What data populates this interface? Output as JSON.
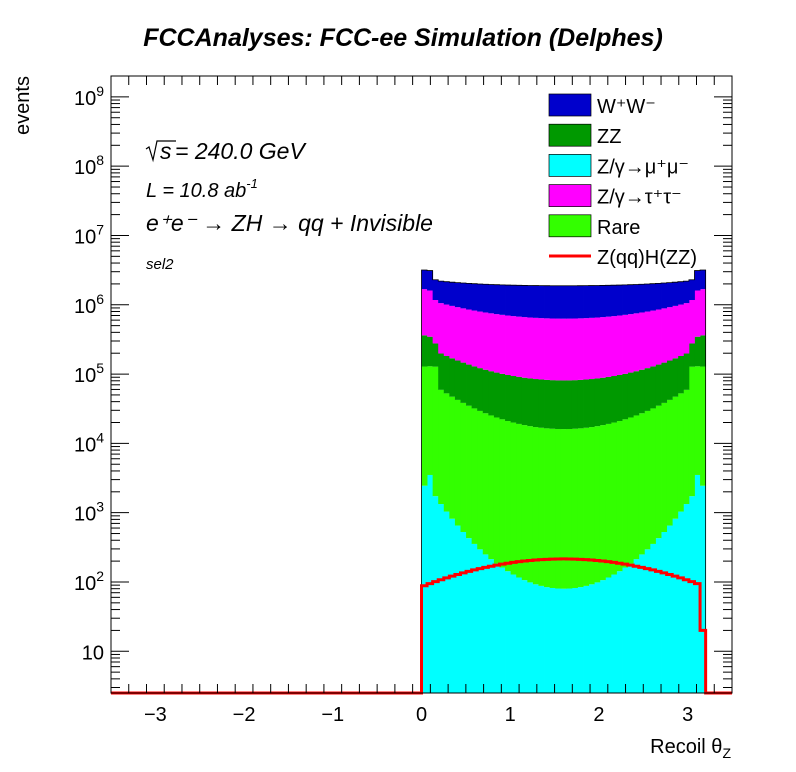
{
  "chart_data": {
    "type": "stacked-histogram",
    "title": "FCCAnalyses: FCC-ee Simulation (Delphes)",
    "xlabel": "Recoil θ",
    "xlabel_sub": "Z",
    "ylabel": "events",
    "xlim": [
      -3.5,
      3.5
    ],
    "ylim": [
      2.5,
      2000000000
    ],
    "yscale": "log",
    "x_ticks": [
      -3,
      -2,
      -1,
      0,
      1,
      2,
      3
    ],
    "x_tick_labels": [
      "−3",
      "−2",
      "−1",
      "0",
      "1",
      "2",
      "3"
    ],
    "y_ticks": [
      {
        "value": 10,
        "base": "10",
        "exp": ""
      },
      {
        "value": 100,
        "base": "10",
        "exp": "2"
      },
      {
        "value": 1000,
        "base": "10",
        "exp": "3"
      },
      {
        "value": 10000,
        "base": "10",
        "exp": "4"
      },
      {
        "value": 100000,
        "base": "10",
        "exp": "5"
      },
      {
        "value": 1000000,
        "base": "10",
        "exp": "6"
      },
      {
        "value": 10000000,
        "base": "10",
        "exp": "7"
      },
      {
        "value": 100000000,
        "base": "10",
        "exp": "8"
      },
      {
        "value": 1000000000,
        "base": "10",
        "exp": "9"
      }
    ],
    "bins": {
      "min": 0.0,
      "width": 0.0628,
      "count": 51
    },
    "annotations": {
      "sqrt_s": "= 240.0 GeV",
      "lumi": "L = 10.8 ab",
      "lumi_exp": "-1",
      "process": "e⁺e⁻ → ZH → qq + Invisible",
      "selection": "sel2"
    },
    "legend": {
      "placement": "top-right"
    },
    "stack": [
      {
        "name_html": "Z/γ→μ⁺μ⁻",
        "color": "#00ffff",
        "shape": "mumu",
        "edge": 3500,
        "center": 80
      },
      {
        "name_html": "Rare",
        "color": "#33ff00",
        "shape": "rare",
        "edge": 90000,
        "center": 16000
      },
      {
        "name_html": "ZZ",
        "color": "#009900",
        "shape": "smooth",
        "edge": 180000,
        "center": 65000
      },
      {
        "name_html": "Z/γ→τ⁺τ⁻",
        "color": "#ff00ff",
        "shape": "smooth",
        "edge": 1000000,
        "center": 550000
      },
      {
        "name_html": "W⁺W⁻",
        "color": "#0000cc",
        "shape": "smooth",
        "edge": 1100000,
        "center": 1250000
      }
    ],
    "signal": {
      "name": "Z(qq)H(ZZ)",
      "color": "#ff0000",
      "edge": 85,
      "center": 215,
      "last_bin": 20
    },
    "legend_order": [
      "W⁺W⁻",
      "ZZ",
      "Z/γ→μ⁺μ⁻",
      "Z/γ→τ⁺τ⁻",
      "Rare",
      "Z(qq)H(ZZ)"
    ]
  }
}
